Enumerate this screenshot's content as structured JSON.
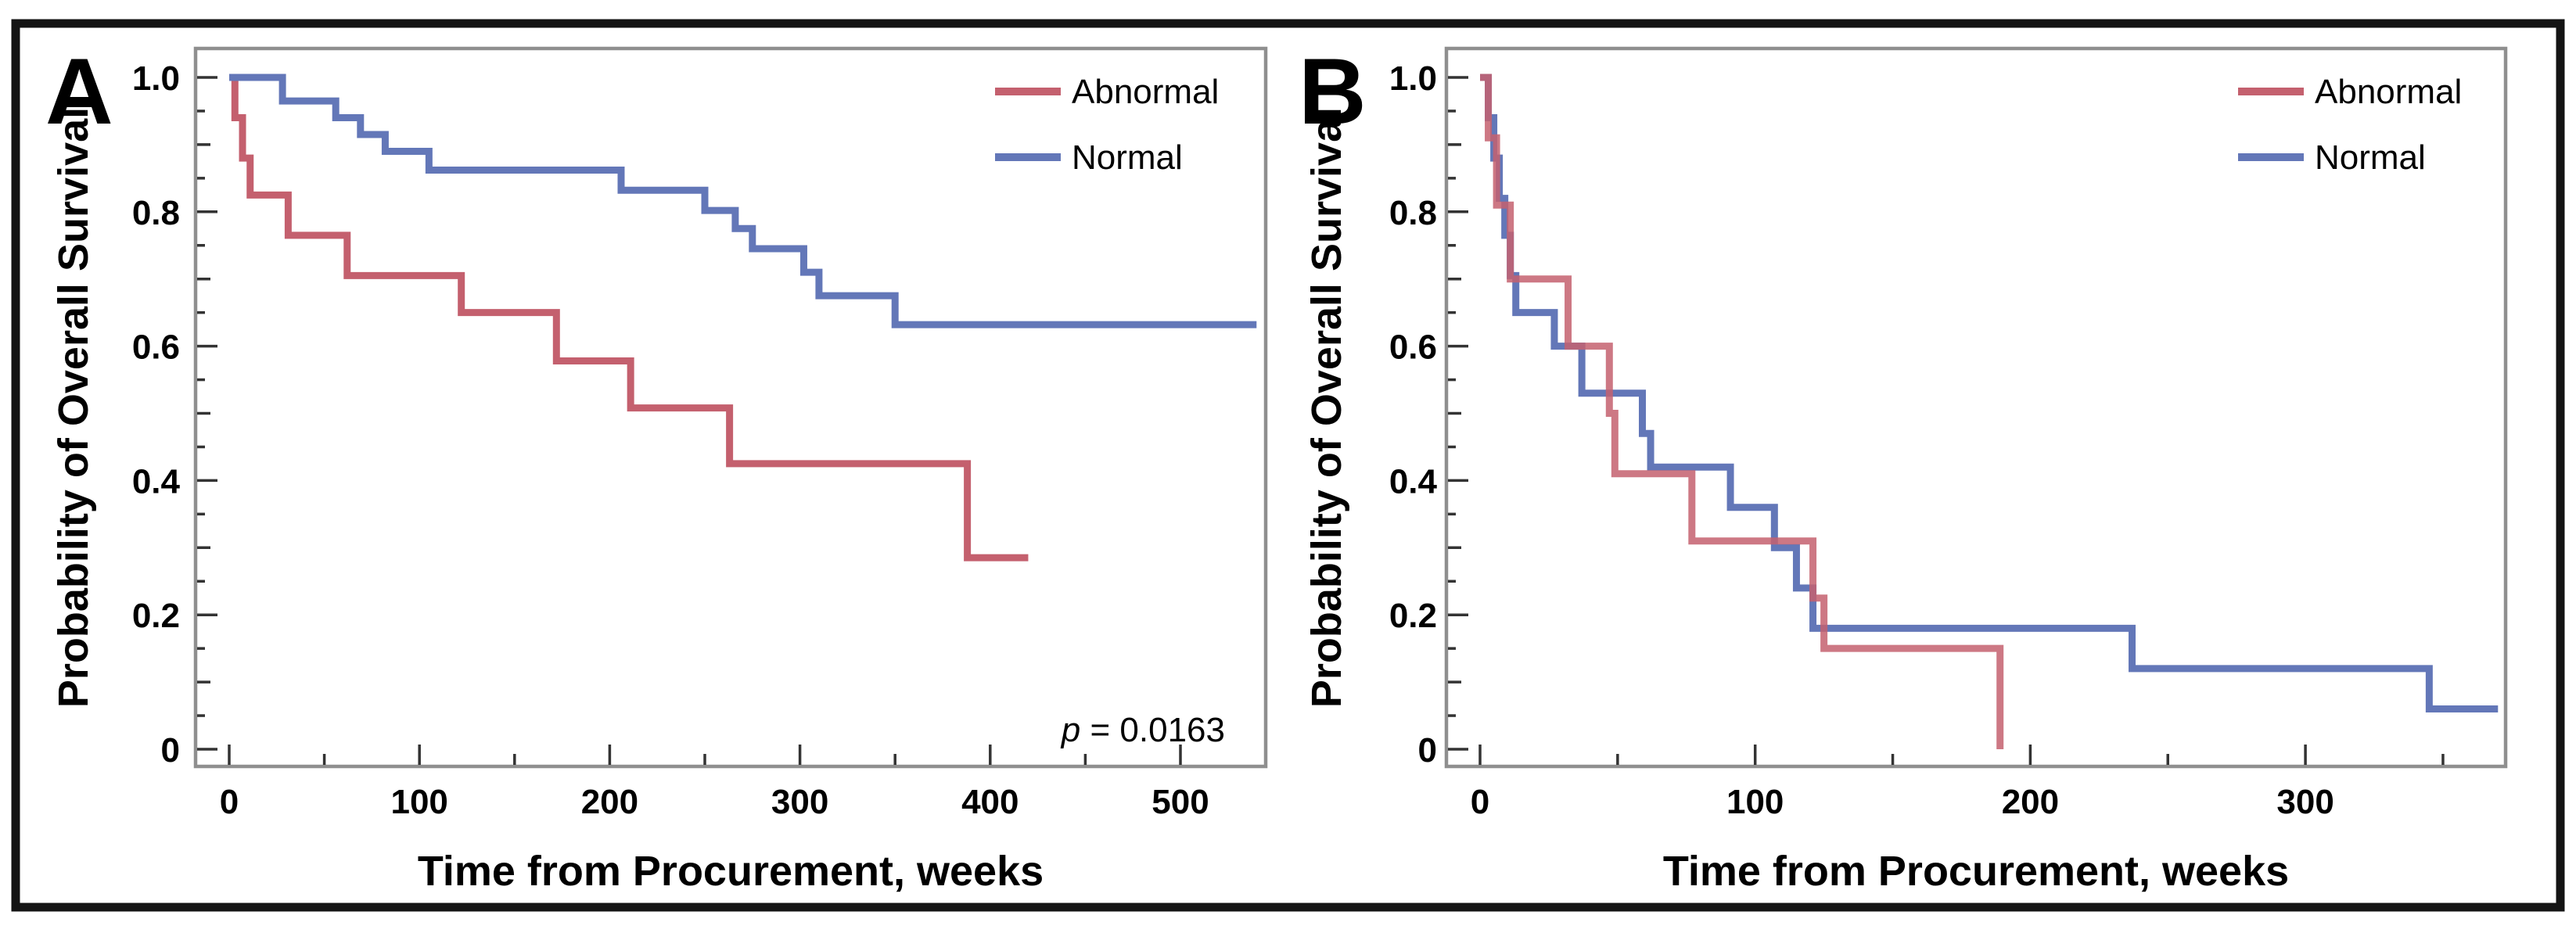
{
  "figure": {
    "background": "#ffffff",
    "outer_border_color": "#141414",
    "plot_frame_color": "#8f8f8f",
    "tick_color": "#333333"
  },
  "chart_data": [
    {
      "panel_label": "A",
      "type": "line",
      "subtype": "kaplan_meier_step",
      "xlabel": "Time from Procurement, weeks",
      "ylabel": "Probability of Overall Survival",
      "xlim": [
        -18,
        543
      ],
      "ylim": [
        0,
        1.05
      ],
      "x_ticks": [
        0,
        100,
        200,
        300,
        400,
        500
      ],
      "x_minor_ticks": [
        50,
        150,
        250,
        350,
        450
      ],
      "y_tick_labels": [
        "1.0",
        "0.8",
        "0.6",
        "0.4",
        "0.2",
        "0"
      ],
      "y_tick_values": [
        1.0,
        0.8,
        0.6,
        0.4,
        0.2,
        0
      ],
      "y_minor_step": 0.05,
      "grid": false,
      "legend_position": "top-right",
      "legend": [
        {
          "label": "Abnormal",
          "color": "#c4606e"
        },
        {
          "label": "Normal",
          "color": "#6377b8"
        }
      ],
      "p_value": {
        "symbol": "p",
        "rest": " = 0.0163"
      },
      "series": [
        {
          "name": "Abnormal",
          "color": "#c4606e",
          "steps": [
            [
              0,
              1.0
            ],
            [
              3,
              0.94
            ],
            [
              7,
              0.88
            ],
            [
              11,
              0.825
            ],
            [
              31,
              0.765
            ],
            [
              62,
              0.705
            ],
            [
              122,
              0.65
            ],
            [
              172,
              0.578
            ],
            [
              211,
              0.508
            ],
            [
              263,
              0.425
            ],
            [
              388,
              0.285
            ],
            [
              420,
              0.285
            ]
          ]
        },
        {
          "name": "Normal",
          "color": "#6377b8",
          "steps": [
            [
              0,
              1.0
            ],
            [
              28,
              0.965
            ],
            [
              56,
              0.94
            ],
            [
              69,
              0.915
            ],
            [
              82,
              0.89
            ],
            [
              105,
              0.862
            ],
            [
              206,
              0.832
            ],
            [
              250,
              0.802
            ],
            [
              266,
              0.775
            ],
            [
              275,
              0.745
            ],
            [
              302,
              0.71
            ],
            [
              310,
              0.675
            ],
            [
              350,
              0.632
            ],
            [
              540,
              0.632
            ]
          ]
        }
      ]
    },
    {
      "panel_label": "B",
      "type": "line",
      "subtype": "kaplan_meier_step",
      "xlabel": "Time from Procurement, weeks",
      "ylabel": "Probability of Overall Survival",
      "xlim": [
        -12,
        373
      ],
      "ylim": [
        0,
        1.05
      ],
      "x_ticks": [
        0,
        100,
        200,
        300
      ],
      "x_minor_ticks": [
        50,
        150,
        250,
        350
      ],
      "y_tick_labels": [
        "1.0",
        "0.8",
        "0.6",
        "0.4",
        "0.2",
        "0"
      ],
      "y_tick_values": [
        1.0,
        0.8,
        0.6,
        0.4,
        0.2,
        0
      ],
      "y_minor_step": 0.05,
      "grid": false,
      "legend_position": "top-right",
      "legend": [
        {
          "label": "Abnormal",
          "color": "#c4606e"
        },
        {
          "label": "Normal",
          "color": "#6377b8"
        }
      ],
      "series": [
        {
          "name": "Normal",
          "color": "#6377b8",
          "steps": [
            [
              0,
              1.0
            ],
            [
              3,
              0.94
            ],
            [
              5,
              0.88
            ],
            [
              7,
              0.82
            ],
            [
              9,
              0.765
            ],
            [
              11,
              0.705
            ],
            [
              13,
              0.65
            ],
            [
              27,
              0.6
            ],
            [
              37,
              0.53
            ],
            [
              59,
              0.47
            ],
            [
              62,
              0.42
            ],
            [
              91,
              0.36
            ],
            [
              107,
              0.3
            ],
            [
              115,
              0.24
            ],
            [
              121,
              0.18
            ],
            [
              237,
              0.12
            ],
            [
              345,
              0.06
            ],
            [
              370,
              0.06
            ]
          ]
        },
        {
          "name": "Abnormal",
          "color": "#c4606e",
          "opacity": 0.85,
          "steps": [
            [
              0,
              1.0
            ],
            [
              3,
              0.91
            ],
            [
              6,
              0.81
            ],
            [
              11,
              0.7
            ],
            [
              32,
              0.6
            ],
            [
              47,
              0.5
            ],
            [
              49,
              0.41
            ],
            [
              77,
              0.31
            ],
            [
              121,
              0.225
            ],
            [
              125,
              0.15
            ],
            [
              189,
              0.0
            ]
          ]
        }
      ]
    }
  ]
}
